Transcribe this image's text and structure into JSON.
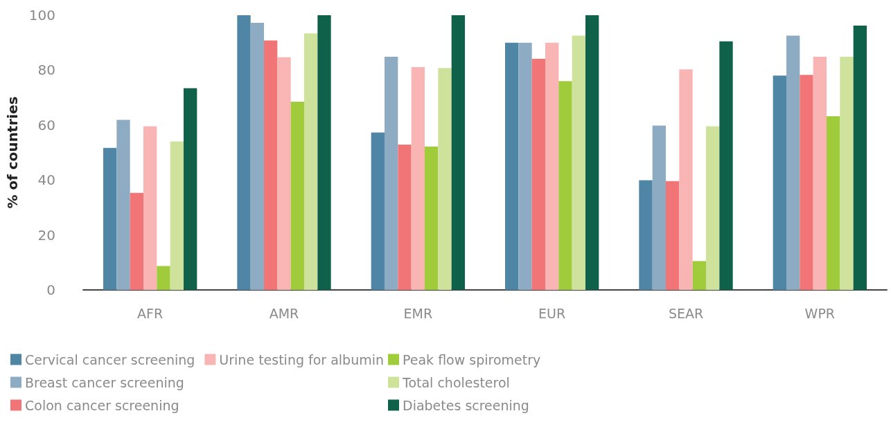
{
  "chart_data": {
    "type": "bar",
    "ylabel": "% of countries",
    "categories": [
      "AFR",
      "AMR",
      "EMR",
      "EUR",
      "SEAR",
      "WPR"
    ],
    "series": [
      {
        "name": "Cervical cancer screening",
        "color": "#4f86a6",
        "values": [
          51.7,
          100,
          57.3,
          90,
          39.9,
          78
        ]
      },
      {
        "name": "Breast cancer screening",
        "color": "#8eabc4",
        "values": [
          61.9,
          97.2,
          84.9,
          90,
          59.8,
          92.6
        ]
      },
      {
        "name": "Colon cancer screening",
        "color": "#f17577",
        "values": [
          35.3,
          90.8,
          52.9,
          84.1,
          39.6,
          78.3
        ]
      },
      {
        "name": "Urine testing for albumin",
        "color": "#f9b5b3",
        "values": [
          59.6,
          84.7,
          81.1,
          90,
          80.3,
          84.9
        ]
      },
      {
        "name": "Peak flow spirometry",
        "color": "#a0cb3a",
        "values": [
          8.7,
          68.5,
          52.2,
          76,
          10.5,
          63.2
        ]
      },
      {
        "name": "Total cholesterol",
        "color": "#cfe29c",
        "values": [
          54,
          93.4,
          80.8,
          92.6,
          59.6,
          84.9
        ]
      },
      {
        "name": "Diabetes screening",
        "color": "#0f614a",
        "values": [
          73.4,
          100,
          100,
          100,
          90.5,
          96.2
        ]
      }
    ],
    "ylim": [
      0,
      100
    ],
    "yticks": [
      0,
      20,
      40,
      60,
      80,
      100
    ],
    "grid": false,
    "legend": "bottom"
  }
}
